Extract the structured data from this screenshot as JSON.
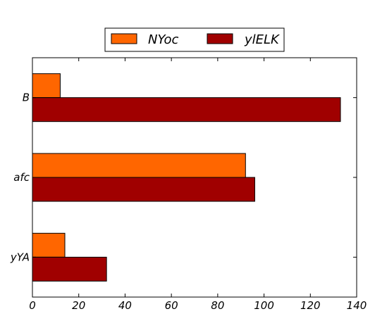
{
  "chart_data": {
    "type": "bar",
    "orientation": "horizontal",
    "categories": [
      "B",
      "afc",
      "yYA"
    ],
    "series": [
      {
        "name": "NYoc",
        "color": "#ff6600",
        "values": [
          12,
          92,
          14
        ]
      },
      {
        "name": "ylELK",
        "color": "#a00000",
        "values": [
          133,
          96,
          32
        ]
      }
    ],
    "xlim": [
      0,
      140
    ],
    "xticks": [
      0,
      20,
      40,
      60,
      80,
      100,
      120,
      140
    ],
    "xlabel": "",
    "ylabel": "",
    "title": "",
    "grid": false,
    "legend_position": "top-center"
  }
}
